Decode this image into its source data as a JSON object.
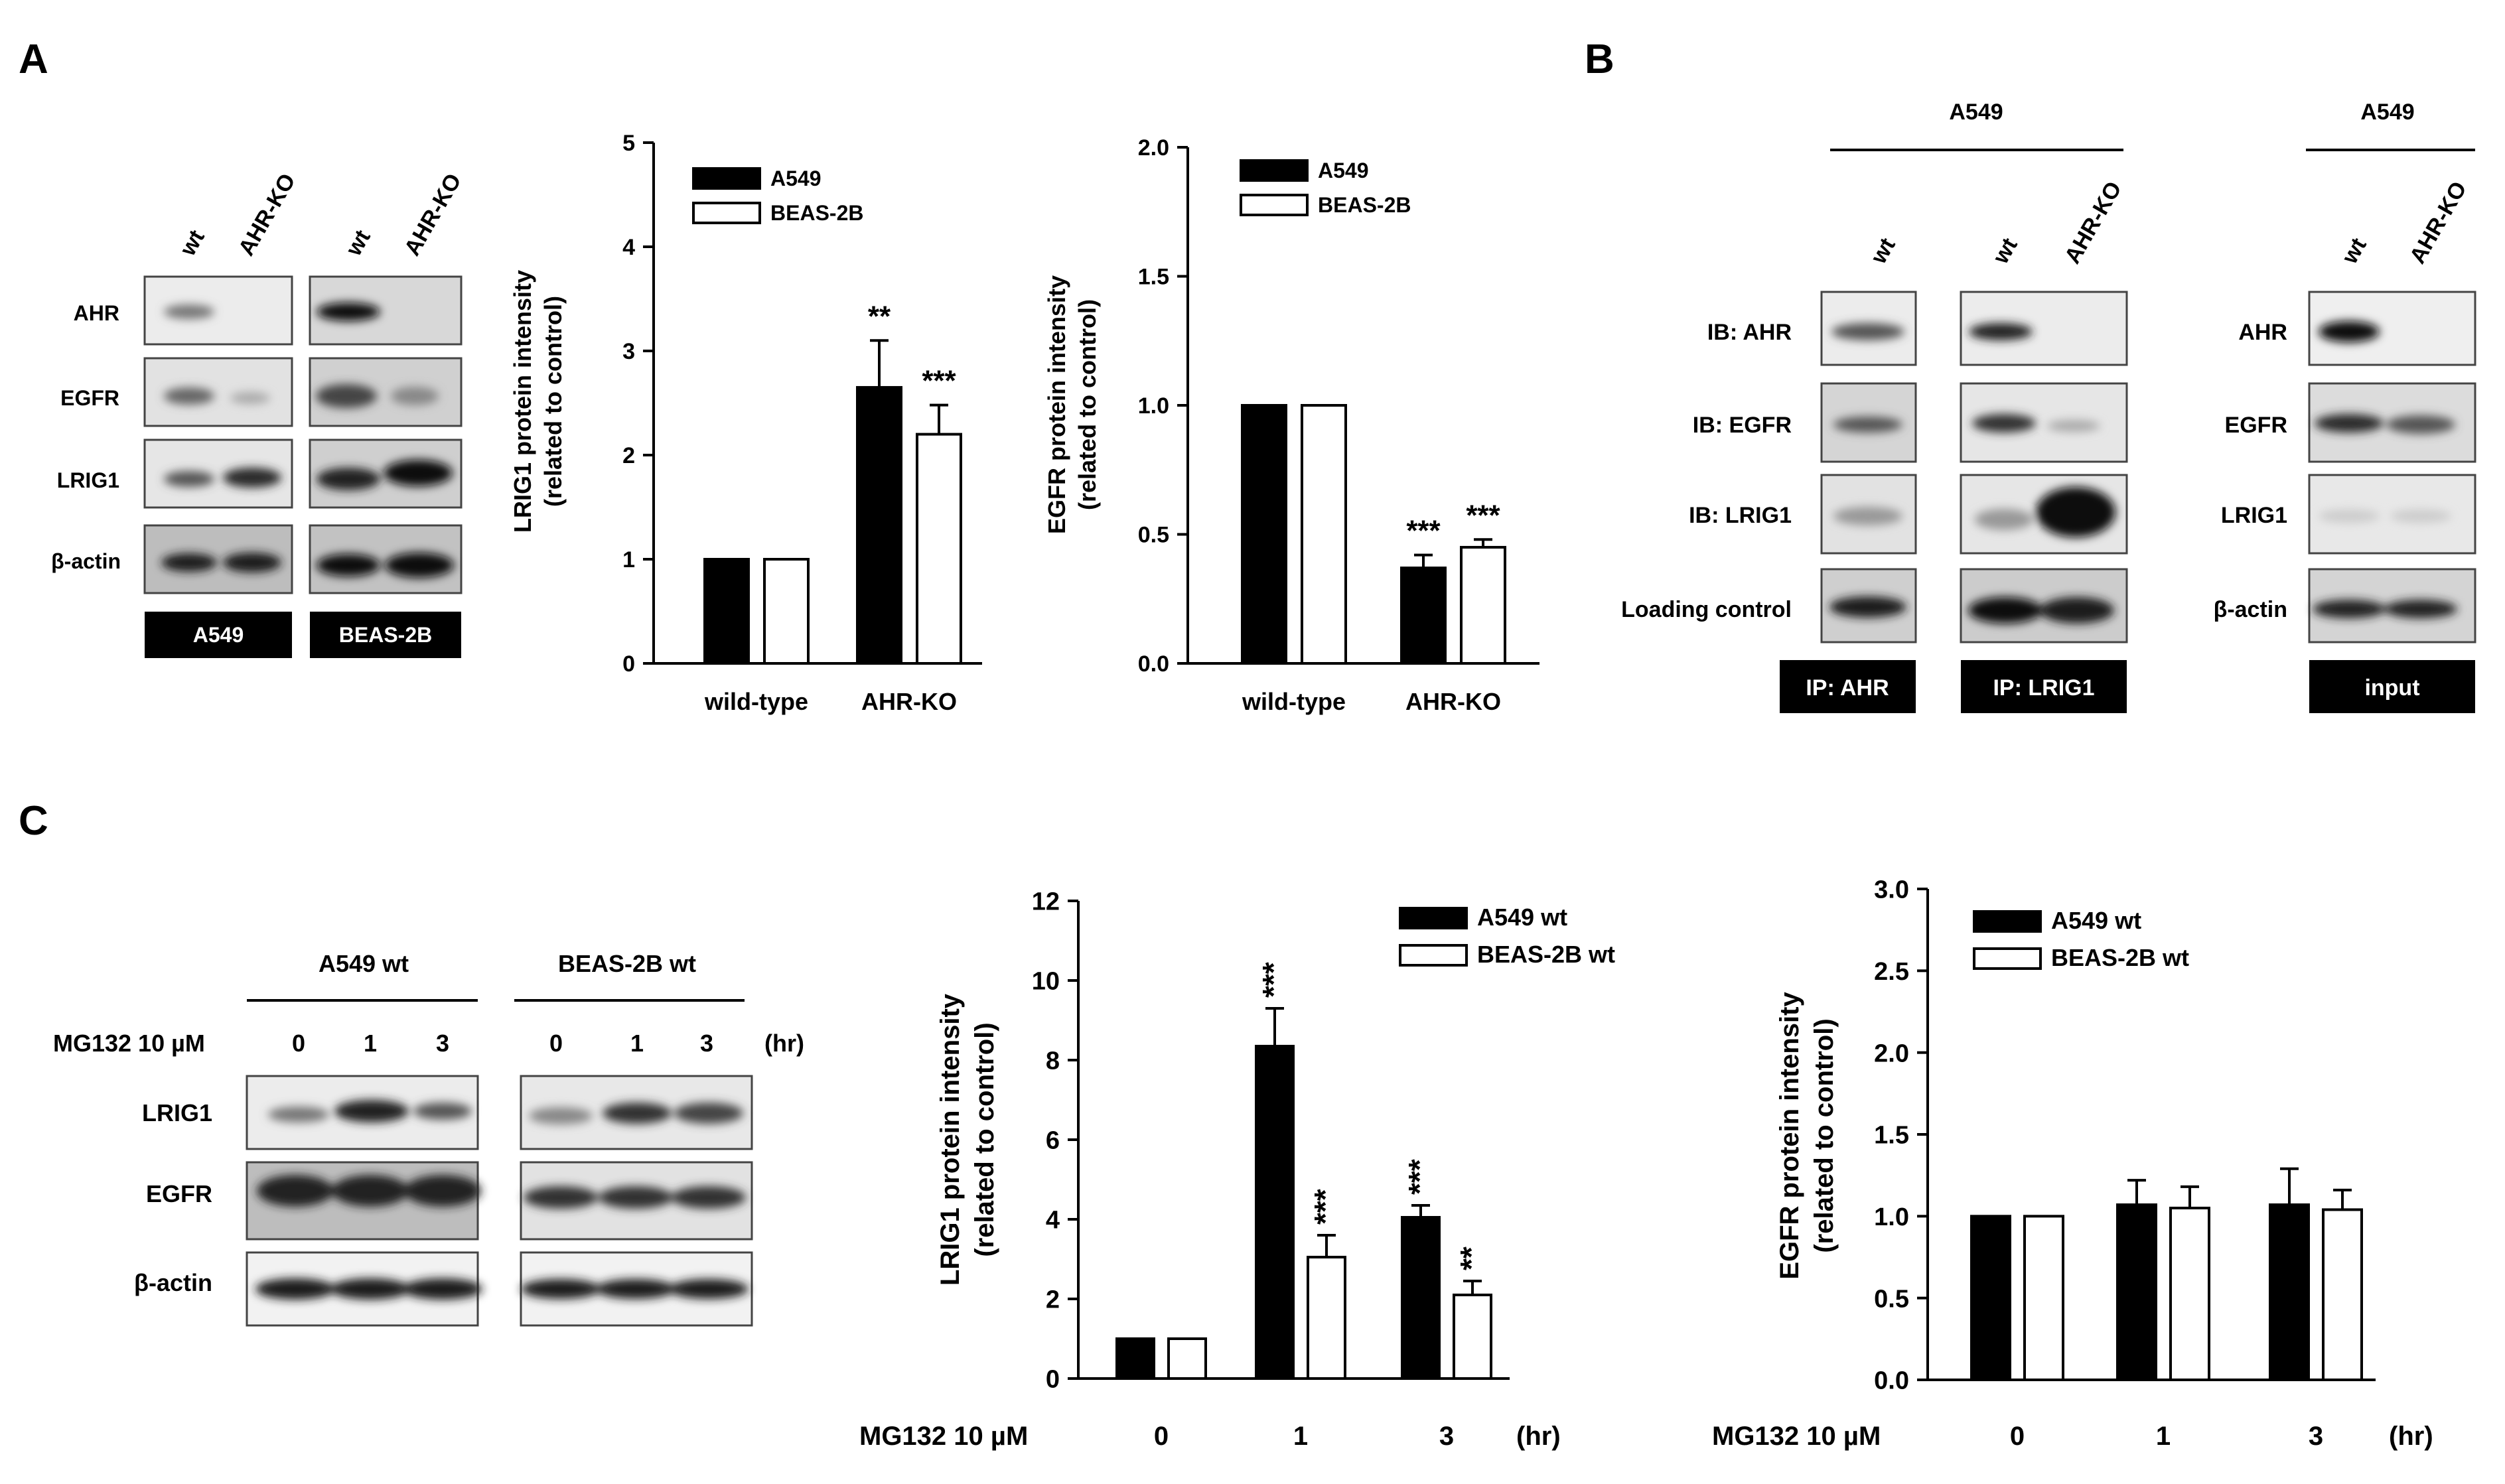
{
  "panels": {
    "A": "A",
    "B": "B",
    "C": "C"
  },
  "blotA": {
    "lanes": [
      "wt",
      "AHR-KO",
      "wt",
      "AHR-KO"
    ],
    "rows": [
      "AHR",
      "EGFR",
      "LRIG1",
      "β-actin"
    ],
    "cells": [
      "A549",
      "BEAS-2B"
    ]
  },
  "blotB": {
    "header_main": "A549",
    "header_input": "A549",
    "lanes": [
      "wt",
      "wt",
      "AHR-KO",
      "wt",
      "AHR-KO"
    ],
    "rows_ip": [
      "IB: AHR",
      "IB: EGFR",
      "IB: LRIG1",
      "Loading control"
    ],
    "rows_input": [
      "AHR",
      "EGFR",
      "LRIG1",
      "β-actin"
    ],
    "ip_labels": [
      "IP: AHR",
      "IP: LRIG1",
      "input"
    ]
  },
  "blotC": {
    "groups": [
      "A549 wt",
      "BEAS-2B wt"
    ],
    "treatment": "MG132 10 µM",
    "times": [
      "0",
      "1",
      "3",
      "0",
      "1",
      "3"
    ],
    "unit": "(hr)",
    "rows": [
      "LRIG1",
      "EGFR",
      "β-actin"
    ]
  },
  "chart_data": [
    {
      "id": "A-LRIG1",
      "type": "bar",
      "categories": [
        "wild-type",
        "AHR-KO"
      ],
      "ylabel_lines": [
        "LRIG1 protein intensity",
        "(related to control)"
      ],
      "ylim": [
        0,
        5
      ],
      "yticks": [
        "0",
        "1",
        "2",
        "3",
        "4",
        "5"
      ],
      "legend": {
        "position": "top-left"
      },
      "series": [
        {
          "name": "A549",
          "color": "#000000",
          "values": [
            1.0,
            2.65
          ],
          "errors": [
            0,
            0.45
          ],
          "stars": [
            "",
            "**"
          ]
        },
        {
          "name": "BEAS-2B",
          "color": "#ffffff",
          "values": [
            1.0,
            2.2
          ],
          "errors": [
            0,
            0.28
          ],
          "stars": [
            "",
            "***"
          ]
        }
      ]
    },
    {
      "id": "A-EGFR",
      "type": "bar",
      "categories": [
        "wild-type",
        "AHR-KO"
      ],
      "ylabel_lines": [
        "EGFR protein intensity",
        "(related to control)"
      ],
      "ylim": [
        0,
        2.0
      ],
      "yticks": [
        "0.0",
        "0.5",
        "1.0",
        "1.5",
        "2.0"
      ],
      "legend": {
        "position": "top-left"
      },
      "series": [
        {
          "name": "A549",
          "color": "#000000",
          "values": [
            1.0,
            0.37
          ],
          "errors": [
            0,
            0.05
          ],
          "stars": [
            "",
            "***"
          ]
        },
        {
          "name": "BEAS-2B",
          "color": "#ffffff",
          "values": [
            1.0,
            0.45
          ],
          "errors": [
            0,
            0.03
          ],
          "stars": [
            "",
            "***"
          ]
        }
      ]
    },
    {
      "id": "C-LRIG1",
      "type": "bar",
      "categories": [
        "0",
        "1",
        "3"
      ],
      "xprefix": "MG132 10 µM",
      "xunit": "(hr)",
      "ylabel_lines": [
        "LRIG1 protein intensity",
        "(related to control)"
      ],
      "ylim": [
        0,
        12
      ],
      "yticks": [
        "0",
        "2",
        "4",
        "6",
        "8",
        "10",
        "12"
      ],
      "legend": {
        "position": "top-right"
      },
      "series": [
        {
          "name": "A549 wt",
          "color": "#000000",
          "values": [
            1.0,
            8.35,
            4.05
          ],
          "errors": [
            0,
            0.95,
            0.3
          ],
          "stars": [
            "",
            "***",
            "***"
          ]
        },
        {
          "name": "BEAS-2B wt",
          "color": "#ffffff",
          "values": [
            1.0,
            3.05,
            2.1
          ],
          "errors": [
            0,
            0.55,
            0.35
          ],
          "stars": [
            "",
            "***",
            "**"
          ]
        }
      ]
    },
    {
      "id": "C-EGFR",
      "type": "bar",
      "categories": [
        "0",
        "1",
        "3"
      ],
      "xprefix": "MG132 10 µM",
      "xunit": "(hr)",
      "ylabel_lines": [
        "EGFR protein intensity",
        "(related to control)"
      ],
      "ylim": [
        0,
        3.0
      ],
      "yticks": [
        "0.0",
        "0.5",
        "1.0",
        "1.5",
        "2.0",
        "2.5",
        "3.0"
      ],
      "legend": {
        "position": "top-left"
      },
      "series": [
        {
          "name": "A549 wt",
          "color": "#000000",
          "values": [
            1.0,
            1.07,
            1.07
          ],
          "errors": [
            0,
            0.15,
            0.22
          ],
          "stars": [
            "",
            "",
            ""
          ]
        },
        {
          "name": "BEAS-2B wt",
          "color": "#ffffff",
          "values": [
            1.0,
            1.05,
            1.04
          ],
          "errors": [
            0,
            0.13,
            0.12
          ],
          "stars": [
            "",
            "",
            ""
          ]
        }
      ]
    }
  ]
}
